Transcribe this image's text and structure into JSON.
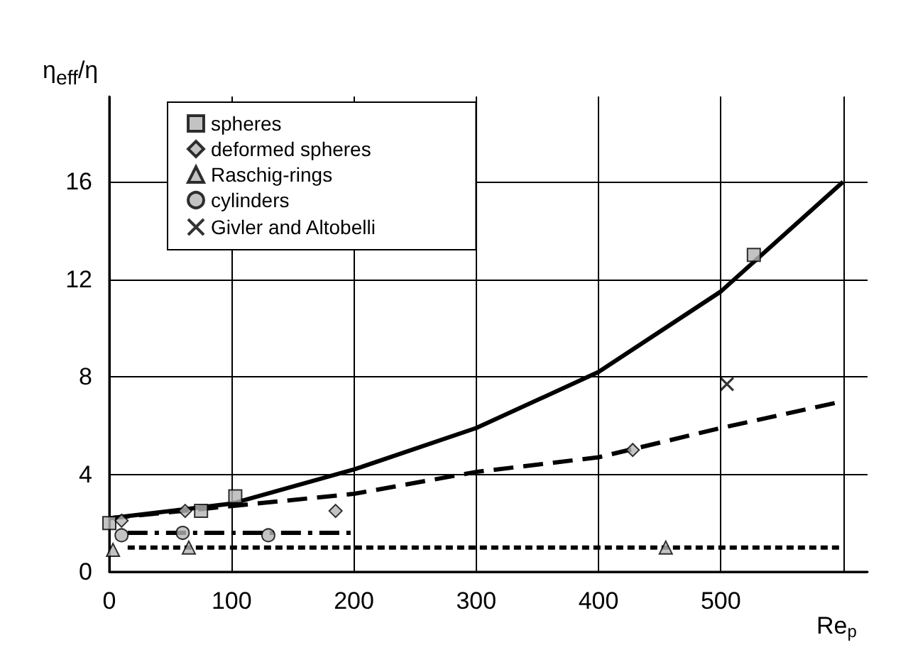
{
  "chart_data": {
    "type": "scatter",
    "xlabel": "Re$_{p}$",
    "ylabel": "η$_{eff}$/η",
    "xlim": [
      0,
      620
    ],
    "ylim": [
      0,
      19.5
    ],
    "xticks": [
      0,
      100,
      200,
      300,
      400,
      500,
      {
        "value": 600,
        "label": null
      }
    ],
    "yticks": [
      0,
      4,
      8,
      12,
      16
    ],
    "grid": true,
    "legend": "top left",
    "series": [
      {
        "name": "spheres",
        "marker": "square",
        "color": "#b4b4b4",
        "x": [
          0,
          75,
          103,
          527
        ],
        "values": [
          2.0,
          2.5,
          3.1,
          13.0
        ]
      },
      {
        "name": "deformed spheres",
        "marker": "diamond",
        "color": "#b4b4b4",
        "x": [
          10,
          62,
          185,
          428
        ],
        "values": [
          2.1,
          2.5,
          2.5,
          5.0
        ]
      },
      {
        "name": "Raschig-rings",
        "marker": "triangle",
        "color": "#b4b4b4",
        "x": [
          3,
          65,
          455
        ],
        "values": [
          0.9,
          1.0,
          1.0
        ]
      },
      {
        "name": "cylinders",
        "marker": "circle",
        "color": "#b4b4b4",
        "x": [
          10,
          60,
          130
        ],
        "values": [
          1.5,
          1.6,
          1.5
        ]
      },
      {
        "name": "Givler and Altobelli",
        "marker": "cross",
        "color": "#000000",
        "x": [
          505
        ],
        "values": [
          7.7
        ]
      },
      {
        "type": "line",
        "line_style": "solid",
        "color": "#000000",
        "x": [
          0,
          100,
          200,
          300,
          400,
          500,
          600
        ],
        "values": [
          2.2,
          2.8,
          4.2,
          5.9,
          8.2,
          11.5,
          16.0
        ]
      },
      {
        "type": "line",
        "line_style": "dashed",
        "color": "#000000",
        "x": [
          0,
          100,
          200,
          300,
          400,
          500,
          600
        ],
        "values": [
          2.2,
          2.7,
          3.2,
          4.1,
          4.7,
          5.9,
          7.0
        ]
      },
      {
        "type": "line",
        "line_style": "dotted",
        "color": "#000000",
        "x": [
          15,
          600
        ],
        "values": [
          1.0,
          1.0
        ]
      },
      {
        "type": "line",
        "line_style": "dashdot",
        "color": "#000000",
        "x": [
          15,
          200
        ],
        "values": [
          1.6,
          1.6
        ]
      }
    ]
  }
}
